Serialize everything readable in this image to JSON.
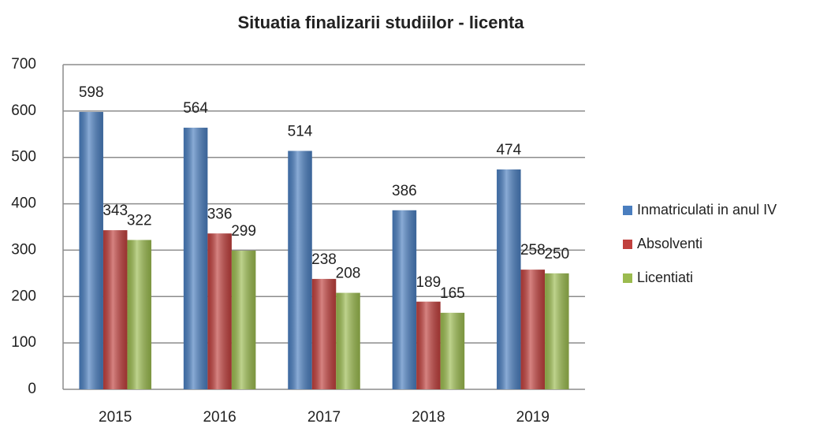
{
  "chart_data": {
    "type": "bar",
    "title": "Situatia finalizarii studiilor - licenta",
    "categories": [
      "2015",
      "2016",
      "2017",
      "2018",
      "2019"
    ],
    "series": [
      {
        "name": "Inmatriculati in anul IV",
        "color": "#4a7ebf",
        "values": [
          598,
          564,
          514,
          386,
          474
        ]
      },
      {
        "name": "Absolventi",
        "color": "#c0403d",
        "values": [
          343,
          336,
          238,
          189,
          258
        ]
      },
      {
        "name": "Licentiati",
        "color": "#9bbb4f",
        "values": [
          322,
          299,
          208,
          165,
          250
        ]
      }
    ],
    "ylim": [
      0,
      700
    ],
    "yticks": [
      0,
      100,
      200,
      300,
      400,
      500,
      600,
      700
    ],
    "grid": true,
    "legend": "right"
  }
}
